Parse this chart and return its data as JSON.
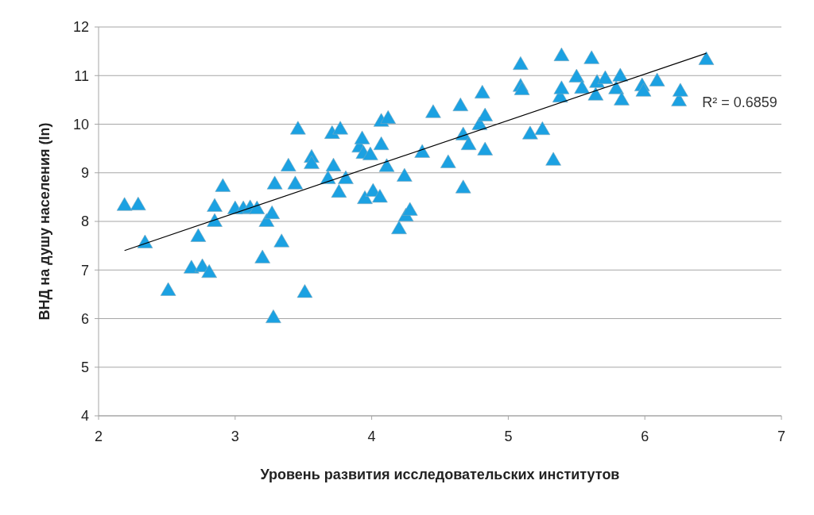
{
  "chart_data": {
    "type": "scatter",
    "xlabel": "Уровень развития исследовательских институтов",
    "ylabel": "ВНД на душу населения (ln)",
    "xlim": [
      2,
      7
    ],
    "ylim": [
      4,
      12
    ],
    "xticks": [
      2,
      3,
      4,
      5,
      6,
      7
    ],
    "yticks": [
      4,
      5,
      6,
      7,
      8,
      9,
      10,
      11,
      12
    ],
    "grid": "y",
    "marker": "triangle",
    "annotations": [
      "R² = 0.6859"
    ],
    "series": [
      {
        "color": "#1ba1e2",
        "x": [
          2.19,
          2.29,
          2.34,
          2.51,
          2.68,
          2.76,
          2.73,
          2.81,
          2.85,
          2.85,
          2.91,
          3.0,
          3.06,
          3.11,
          3.16,
          3.2,
          3.23,
          3.27,
          3.28,
          3.29,
          3.34,
          3.39,
          3.44,
          3.46,
          3.51,
          3.56,
          3.56,
          3.68,
          3.71,
          3.72,
          3.76,
          3.77,
          3.81,
          3.91,
          3.93,
          3.94,
          3.95,
          3.99,
          4.01,
          4.06,
          4.07,
          4.07,
          4.12,
          4.11,
          4.2,
          4.25,
          4.28,
          4.24,
          4.37,
          4.45,
          4.56,
          4.65,
          4.67,
          4.67,
          4.71,
          4.79,
          4.81,
          4.83,
          4.83,
          5.09,
          5.09,
          5.1,
          5.16,
          5.25,
          5.33,
          5.38,
          5.39,
          5.39,
          5.5,
          5.54,
          5.61,
          5.64,
          5.65,
          5.71,
          5.79,
          5.82,
          5.83,
          5.98,
          5.99,
          6.09,
          6.25,
          6.26,
          6.45
        ],
        "values": [
          8.33,
          8.34,
          7.56,
          6.58,
          7.04,
          7.07,
          7.69,
          6.95,
          8.31,
          8.0,
          8.72,
          8.26,
          8.26,
          8.28,
          8.26,
          7.25,
          8.0,
          8.16,
          6.02,
          8.77,
          7.58,
          9.14,
          8.77,
          9.9,
          6.54,
          9.32,
          9.19,
          8.88,
          9.81,
          9.14,
          8.6,
          9.9,
          8.88,
          9.53,
          9.7,
          9.4,
          8.47,
          9.37,
          8.62,
          8.5,
          9.58,
          10.06,
          10.12,
          9.13,
          7.85,
          8.11,
          8.23,
          8.93,
          9.42,
          10.24,
          9.21,
          10.38,
          8.69,
          9.78,
          9.58,
          9.99,
          10.64,
          10.17,
          9.47,
          11.23,
          10.78,
          10.71,
          9.8,
          9.89,
          9.26,
          10.56,
          10.73,
          11.41,
          10.97,
          10.74,
          11.35,
          10.6,
          10.86,
          10.94,
          10.73,
          10.99,
          10.5,
          10.79,
          10.68,
          10.89,
          10.48,
          10.68,
          11.33
        ]
      },
      {
        "type": "line",
        "color": "#000000",
        "marker": "none",
        "x": [
          2.19,
          6.45
        ],
        "values": [
          7.4,
          11.46
        ]
      }
    ]
  }
}
